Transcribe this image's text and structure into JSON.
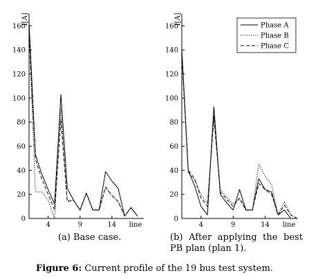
{
  "figure": {
    "label": "Figure 6:",
    "caption": "Current profile of the 19 bus test system."
  },
  "chart_data": [
    {
      "type": "line",
      "panel_label": "(a) Base case.",
      "ylabel": "I[A]",
      "xlabel": "line",
      "ylim": [
        0,
        170
      ],
      "xlim": [
        1,
        19
      ],
      "yticks": [
        0,
        20,
        40,
        60,
        80,
        100,
        120,
        140,
        160
      ],
      "xticks": [
        4,
        9,
        14
      ],
      "legend": null,
      "x": [
        1,
        2,
        3,
        4,
        5,
        6,
        7,
        8,
        9,
        10,
        11,
        12,
        13,
        14,
        15,
        16,
        17,
        18
      ],
      "series": [
        {
          "name": "Phase A",
          "style": "solid",
          "values": [
            163,
            53,
            37,
            24,
            12,
            103,
            25,
            15,
            7,
            21,
            7,
            7,
            39,
            31,
            25,
            2,
            9,
            2
          ]
        },
        {
          "name": "Phase B",
          "style": "dotted",
          "values": [
            158,
            22,
            22,
            15,
            0,
            91,
            15,
            15,
            7,
            21,
            7,
            7,
            26,
            19,
            14,
            2,
            9,
            2
          ]
        },
        {
          "name": "Phase C",
          "style": "dashed",
          "values": [
            154,
            49,
            33,
            20,
            7,
            82,
            14,
            15,
            7,
            21,
            7,
            7,
            26,
            19,
            14,
            2,
            9,
            2
          ]
        }
      ]
    },
    {
      "type": "line",
      "panel_label": "(b) After applying the best PB plan (plan 1).",
      "ylabel": "I[A]",
      "xlabel": "line",
      "ylim": [
        0,
        170
      ],
      "xlim": [
        1,
        19
      ],
      "yticks": [
        0,
        20,
        40,
        60,
        80,
        100,
        120,
        140,
        160
      ],
      "xticks": [
        4,
        9,
        14
      ],
      "legend": "top-right",
      "x": [
        1,
        2,
        3,
        4,
        5,
        6,
        7,
        8,
        9,
        10,
        11,
        12,
        13,
        14,
        15,
        16,
        17,
        18,
        19
      ],
      "series": [
        {
          "name": "Phase A",
          "style": "solid",
          "values": [
            141,
            40,
            27,
            10,
            3,
            93,
            20,
            13,
            7,
            24,
            7,
            7,
            33,
            24,
            22,
            3,
            7,
            0,
            0
          ]
        },
        {
          "name": "Phase B",
          "style": "dotted",
          "values": [
            139,
            38,
            32,
            20,
            12,
            86,
            24,
            18,
            12,
            16,
            7,
            7,
            45,
            35,
            28,
            3,
            14,
            3,
            0
          ]
        },
        {
          "name": "Phase C",
          "style": "dashed",
          "values": [
            136,
            40,
            33,
            17,
            10,
            84,
            22,
            16,
            10,
            17,
            7,
            7,
            29,
            24,
            20,
            3,
            11,
            3,
            0
          ]
        }
      ]
    }
  ]
}
